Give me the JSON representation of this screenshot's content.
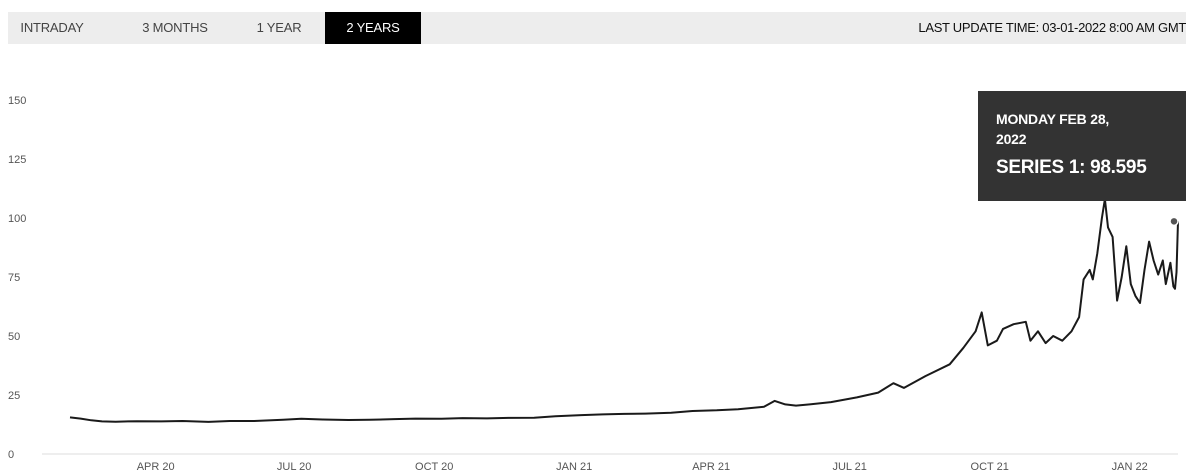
{
  "tabs": [
    {
      "label": "INTRADAY",
      "active": false
    },
    {
      "label": "3 MONTHS",
      "active": false
    },
    {
      "label": "1 YEAR",
      "active": false
    },
    {
      "label": "2 YEARS",
      "active": true
    }
  ],
  "last_update": "LAST UPDATE TIME: 03-01-2022 8:00 AM GMT",
  "tooltip": {
    "date_line1": "MONDAY FEB 28,",
    "date_line2": "2022",
    "value_text": "SERIES 1: 98.595"
  },
  "colors": {
    "line": "#1a1a1a",
    "tooltip_bg": "#333333",
    "active_tab_bg": "#000000",
    "topbar_bg": "#ededed"
  },
  "chart_data": {
    "type": "line",
    "title": "",
    "xlabel": "",
    "ylabel": "",
    "ylim": [
      0,
      150
    ],
    "yticks": [
      "0",
      "25",
      "50",
      "75",
      "100",
      "125",
      "150"
    ],
    "xticks": [
      "APR 20",
      "JUL 20",
      "OCT 20",
      "JAN 21",
      "APR 21",
      "JUL 21",
      "OCT 21",
      "JAN 22"
    ],
    "grid": false,
    "series": [
      {
        "name": "Series 1",
        "points": [
          [
            "2020-03-02",
            15.5
          ],
          [
            "2020-03-09",
            15
          ],
          [
            "2020-03-16",
            14.3
          ],
          [
            "2020-03-23",
            13.8
          ],
          [
            "2020-04-01",
            13.7
          ],
          [
            "2020-04-15",
            13.9
          ],
          [
            "2020-05-01",
            13.8
          ],
          [
            "2020-05-15",
            14
          ],
          [
            "2020-06-01",
            13.6
          ],
          [
            "2020-06-15",
            14
          ],
          [
            "2020-07-01",
            14
          ],
          [
            "2020-07-20",
            14.5
          ],
          [
            "2020-08-01",
            14.9
          ],
          [
            "2020-08-15",
            14.6
          ],
          [
            "2020-09-01",
            14.4
          ],
          [
            "2020-09-15",
            14.5
          ],
          [
            "2020-10-01",
            14.8
          ],
          [
            "2020-10-15",
            15
          ],
          [
            "2020-11-01",
            14.9
          ],
          [
            "2020-11-15",
            15.2
          ],
          [
            "2020-12-01",
            15.1
          ],
          [
            "2020-12-15",
            15.3
          ],
          [
            "2021-01-01",
            15.4
          ],
          [
            "2021-01-15",
            16
          ],
          [
            "2021-02-01",
            16.5
          ],
          [
            "2021-02-15",
            16.8
          ],
          [
            "2021-03-01",
            17
          ],
          [
            "2021-03-15",
            17.1
          ],
          [
            "2021-04-01",
            17.5
          ],
          [
            "2021-04-15",
            18.2
          ],
          [
            "2021-05-01",
            18.5
          ],
          [
            "2021-05-15",
            19
          ],
          [
            "2021-06-01",
            20
          ],
          [
            "2021-06-08",
            22.5
          ],
          [
            "2021-06-15",
            21
          ],
          [
            "2021-06-22",
            20.5
          ],
          [
            "2021-07-01",
            21
          ],
          [
            "2021-07-15",
            22
          ],
          [
            "2021-08-01",
            24
          ],
          [
            "2021-08-15",
            26
          ],
          [
            "2021-08-25",
            30
          ],
          [
            "2021-09-01",
            28
          ],
          [
            "2021-09-15",
            33
          ],
          [
            "2021-10-01",
            38
          ],
          [
            "2021-10-10",
            45
          ],
          [
            "2021-10-18",
            52
          ],
          [
            "2021-10-22",
            60
          ],
          [
            "2021-10-26",
            46
          ],
          [
            "2021-11-01",
            48
          ],
          [
            "2021-11-05",
            53
          ],
          [
            "2021-11-12",
            55
          ],
          [
            "2021-11-20",
            56
          ],
          [
            "2021-11-23",
            48
          ],
          [
            "2021-11-28",
            52
          ],
          [
            "2021-12-03",
            47
          ],
          [
            "2021-12-08",
            50
          ],
          [
            "2021-12-14",
            48
          ],
          [
            "2021-12-20",
            52
          ],
          [
            "2021-12-25",
            58
          ],
          [
            "2021-12-28",
            74
          ],
          [
            "2022-01-01",
            78
          ],
          [
            "2022-01-03",
            74
          ],
          [
            "2022-01-06",
            85
          ],
          [
            "2022-01-09",
            100
          ],
          [
            "2022-01-11",
            108
          ],
          [
            "2022-01-13",
            96
          ],
          [
            "2022-01-16",
            92
          ],
          [
            "2022-01-19",
            65
          ],
          [
            "2022-01-22",
            75
          ],
          [
            "2022-01-25",
            88
          ],
          [
            "2022-01-28",
            72
          ],
          [
            "2022-01-31",
            67
          ],
          [
            "2022-02-03",
            64
          ],
          [
            "2022-02-06",
            78
          ],
          [
            "2022-02-09",
            90
          ],
          [
            "2022-02-12",
            82
          ],
          [
            "2022-02-15",
            76
          ],
          [
            "2022-02-18",
            82
          ],
          [
            "2022-02-20",
            72
          ],
          [
            "2022-02-23",
            81
          ],
          [
            "2022-02-25",
            71
          ],
          [
            "2022-02-26",
            70
          ],
          [
            "2022-02-27",
            77
          ],
          [
            "2022-02-28",
            98.595
          ]
        ]
      }
    ],
    "highlight": {
      "date": "2022-02-28",
      "value": 98.595
    }
  }
}
